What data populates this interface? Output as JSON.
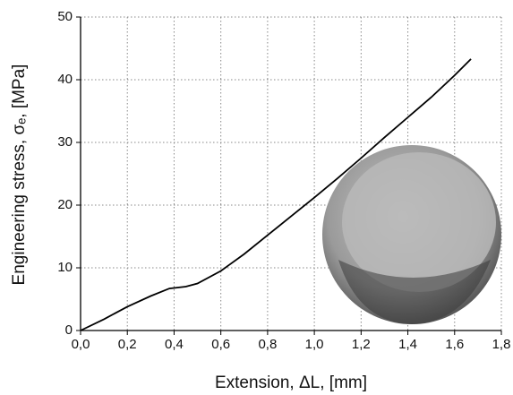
{
  "chart_data": {
    "type": "line",
    "x_label": "Extension, ΔL, [mm]",
    "y_label": "Engineering stress, σₑ, [MPa]",
    "x": [
      0,
      0.1,
      0.2,
      0.3,
      0.38,
      0.45,
      0.5,
      0.6,
      0.7,
      0.8,
      0.9,
      1.0,
      1.1,
      1.2,
      1.3,
      1.4,
      1.5,
      1.6,
      1.67
    ],
    "series": [
      {
        "color": "#000000",
        "values": [
          0,
          1.8,
          3.8,
          5.5,
          6.7,
          7.0,
          7.5,
          9.5,
          12.2,
          15.2,
          18.2,
          21.2,
          24.3,
          27.5,
          30.8,
          34.0,
          37.2,
          40.7,
          43.3
        ]
      }
    ],
    "xlim": [
      0,
      1.8
    ],
    "xticks": [
      {
        "value": 0,
        "label": "0,0"
      },
      {
        "value": 0.2,
        "label": "0,2"
      },
      {
        "value": 0.4,
        "label": "0,4"
      },
      {
        "value": 0.6,
        "label": "0,6"
      },
      {
        "value": 0.8,
        "label": "0,8"
      },
      {
        "value": 1.0,
        "label": "1,0"
      },
      {
        "value": 1.2,
        "label": "1,2"
      },
      {
        "value": 1.4,
        "label": "1,4"
      },
      {
        "value": 1.6,
        "label": "1,6"
      },
      {
        "value": 1.8,
        "label": "1,8"
      }
    ],
    "ylim": [
      0,
      50
    ],
    "yticks": [
      0,
      10,
      20,
      30,
      40,
      50
    ],
    "grid": true
  }
}
